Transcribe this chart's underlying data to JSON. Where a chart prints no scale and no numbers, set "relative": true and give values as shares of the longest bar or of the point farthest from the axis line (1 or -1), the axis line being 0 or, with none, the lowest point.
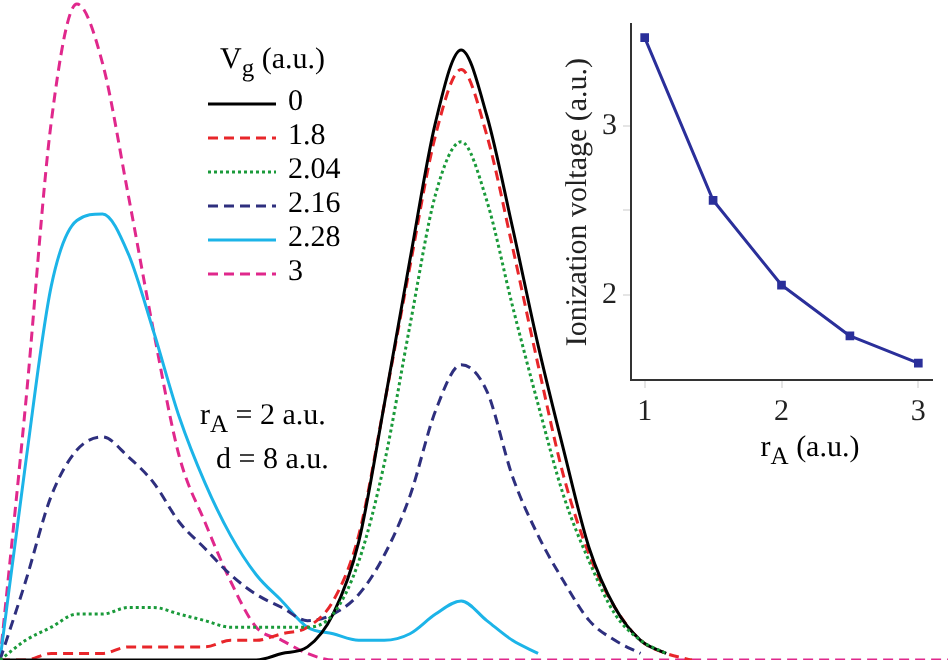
{
  "chart_data": [
    {
      "type": "line",
      "relative": true,
      "tick_labels": false,
      "grid": false,
      "legend": "top left",
      "legend_title": "V$_{g}$ (a.u.)",
      "marker": "none",
      "annotations": [
        "r$_{A}$ = 2 a.u.",
        "d = 8 a.u."
      ],
      "categories": [
        null,
        null,
        null,
        null,
        null,
        null,
        null,
        null,
        null,
        null,
        null,
        null,
        null,
        null,
        null,
        null,
        null,
        null,
        null,
        null,
        null,
        null,
        null,
        null,
        null,
        null,
        null,
        null,
        null,
        null,
        null,
        null,
        null,
        null,
        null,
        null,
        null,
        null
      ],
      "series": [
        {
          "name": "0",
          "color": "#000000",
          "line_style": "solid",
          "values": [
            0,
            0,
            0,
            0,
            0,
            0,
            0,
            0,
            0,
            0,
            0,
            0.01,
            0.02,
            0.07,
            0.18,
            0.39,
            0.61,
            0.82,
            0.93,
            0.83,
            0.66,
            0.48,
            0.32,
            0.17,
            0.08,
            0.03,
            0.01,
            null,
            null,
            null,
            null,
            null,
            null,
            null,
            null,
            null,
            null,
            null
          ]
        },
        {
          "name": "1.8",
          "color": "#e8262a",
          "line_style": "dashed",
          "values": [
            0,
            0,
            0.01,
            0.01,
            0.01,
            0.02,
            0.02,
            0.02,
            0.02,
            0.03,
            0.03,
            0.04,
            0.05,
            0.09,
            0.19,
            0.39,
            0.6,
            0.8,
            0.9,
            0.8,
            0.63,
            0.45,
            0.28,
            0.16,
            0.08,
            0.03,
            0.01,
            0,
            null,
            null,
            null,
            null,
            null,
            null,
            null,
            null,
            null,
            null
          ]
        },
        {
          "name": "2.04",
          "color": "#1a9a3a",
          "line_style": "dotted",
          "values": [
            0,
            0.03,
            0.05,
            0.07,
            0.07,
            0.08,
            0.08,
            0.07,
            0.06,
            0.05,
            0.05,
            0.05,
            0.05,
            0.07,
            0.15,
            0.3,
            0.51,
            0.71,
            0.79,
            0.7,
            0.54,
            0.39,
            0.25,
            0.15,
            0.07,
            0.03,
            0.01,
            null,
            null,
            null,
            null,
            null,
            null,
            null,
            null,
            null,
            null,
            null
          ]
        },
        {
          "name": "2.16",
          "color": "#2e2f7e",
          "line_style": "dashed",
          "values": [
            0,
            0.12,
            0.25,
            0.32,
            0.34,
            0.31,
            0.27,
            0.21,
            0.17,
            0.13,
            0.1,
            0.08,
            0.06,
            0.07,
            0.1,
            0.16,
            0.25,
            0.38,
            0.45,
            0.41,
            0.28,
            0.19,
            0.12,
            0.06,
            0.03,
            0.01,
            null,
            null,
            null,
            null,
            null,
            null,
            null,
            null,
            null,
            null,
            null,
            null
          ]
        },
        {
          "name": "2.28",
          "color": "#1cb4e8",
          "line_style": "solid",
          "values": [
            0,
            0.3,
            0.57,
            0.67,
            0.68,
            0.62,
            0.5,
            0.37,
            0.27,
            0.19,
            0.13,
            0.09,
            0.05,
            0.04,
            0.03,
            0.03,
            0.04,
            0.07,
            0.09,
            0.06,
            0.03,
            0.01,
            null,
            null,
            null,
            null,
            null,
            null,
            null,
            null,
            null,
            null,
            null,
            null,
            null,
            null,
            null,
            null
          ]
        },
        {
          "name": "3",
          "color": "#e0288c",
          "line_style": "dashed",
          "values": [
            0,
            0.39,
            0.82,
            1,
            0.91,
            0.71,
            0.5,
            0.31,
            0.21,
            0.12,
            0.05,
            0.03,
            0.01,
            0,
            0,
            0,
            0,
            0,
            0,
            0,
            0,
            0,
            0,
            0,
            0,
            0,
            0,
            0,
            0,
            0,
            0,
            0,
            0,
            0,
            0,
            0,
            0,
            0
          ]
        }
      ]
    },
    {
      "type": "line",
      "xlabel": "r$_{A}$ (a.u.)",
      "ylabel": "Ionization voltage (a.u.)",
      "grid": false,
      "marker": "square",
      "x": [
        1,
        1.5,
        2,
        2.5,
        3
      ],
      "xlim": [
        0.9,
        3.1
      ],
      "xticks": [
        1,
        2,
        3
      ],
      "ylim": [
        1.5,
        3.6
      ],
      "yticks": [
        2,
        {
          "value": 2.5,
          "label": null
        },
        3
      ],
      "series": [
        {
          "color": "#2a2f9a",
          "line_style": "solid",
          "values": [
            3.52,
            2.56,
            2.06,
            1.76,
            1.6
          ]
        }
      ]
    }
  ]
}
